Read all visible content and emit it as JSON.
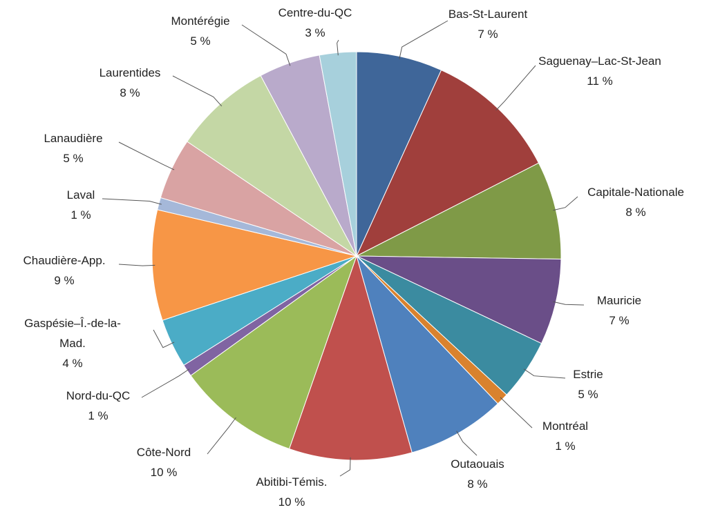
{
  "chart_data": {
    "type": "pie",
    "categories": [
      "Bas-St-Laurent",
      "Saguenay–Lac-St-Jean",
      "Capitale-Nationale",
      "Mauricie",
      "Estrie",
      "Montréal",
      "Outaouais",
      "Abitibi-Témis.",
      "Côte-Nord",
      "Nord-du-QC",
      "Gaspésie–Î.-de-la-Mad.",
      "Chaudière-App.",
      "Laval",
      "Lanaudière",
      "Laurentides",
      "Montérégie",
      "Centre-du-QC"
    ],
    "values": [
      7,
      11,
      8,
      7,
      5,
      1,
      8,
      10,
      10,
      1,
      4,
      9,
      1,
      5,
      8,
      5,
      3
    ],
    "value_labels": [
      "7 %",
      "11 %",
      "8 %",
      "7 %",
      "5 %",
      "1 %",
      "8 %",
      "10 %",
      "10 %",
      "1 %",
      "4 %",
      "9 %",
      "1 %",
      "5 %",
      "8 %",
      "5 %",
      "3 %"
    ],
    "colors": [
      "#3f6699",
      "#a03f3c",
      "#7f9a47",
      "#6a4e88",
      "#3b8ba0",
      "#d9822e",
      "#4f81bd",
      "#c0504d",
      "#9bbb59",
      "#8064a2",
      "#4bacc6",
      "#f79646",
      "#a5b8d9",
      "#d9a3a3",
      "#c4d7a5",
      "#b9aacb",
      "#a7d0dc"
    ]
  }
}
